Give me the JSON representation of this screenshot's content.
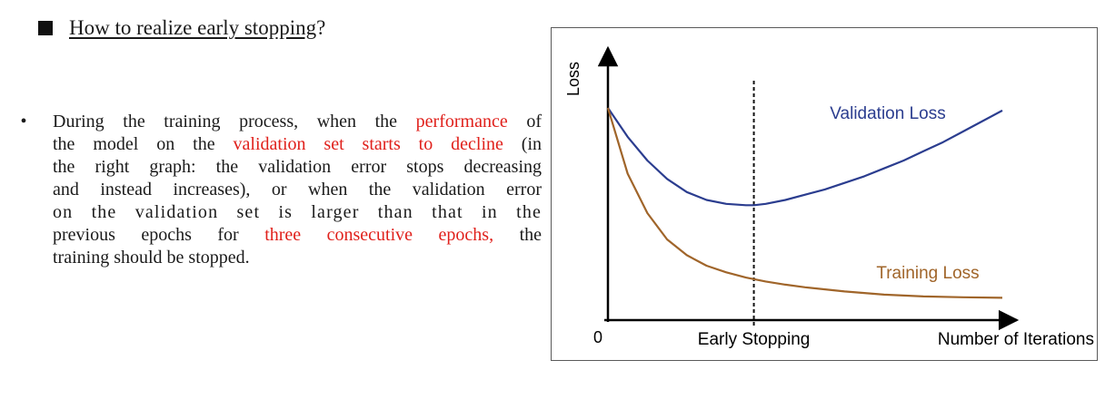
{
  "heading": {
    "link_text": "How to realize early stopping",
    "suffix": "?"
  },
  "bullet": {
    "symbol": "•",
    "lines": [
      [
        {
          "t": "During the training process, when the ",
          "red": false
        },
        {
          "t": "performance",
          "red": true
        },
        {
          "t": " of",
          "red": false
        }
      ],
      [
        {
          "t": "the model on the ",
          "red": false
        },
        {
          "t": "validation set starts to decline",
          "red": true
        },
        {
          "t": " (in",
          "red": false
        }
      ],
      [
        {
          "t": "the right graph: the validation error stops decreasing",
          "red": false
        }
      ],
      [
        {
          "t": "and instead increases), or when the validation error",
          "red": false
        }
      ],
      [
        {
          "t": "on the validation set is larger than that in the",
          "red": false
        }
      ],
      [
        {
          "t": "previous epochs for ",
          "red": false
        },
        {
          "t": "three consecutive epochs,",
          "red": true
        },
        {
          "t": " the",
          "red": false
        }
      ],
      [
        {
          "t": "training should be stopped.",
          "red": false
        }
      ]
    ]
  },
  "figure": {
    "colors": {
      "validation": "#2b3d8f",
      "training": "#a0652a",
      "axis": "#000000",
      "highlight": "#e0201b"
    },
    "ylabel": "Loss",
    "origin_label": "0",
    "xlabel": "Number of Iterations",
    "marker_label": "Early Stopping"
  },
  "chart_data": {
    "type": "line",
    "xlabel": "Number of Iterations",
    "ylabel": "Loss",
    "xlim": [
      0,
      1
    ],
    "ylim": [
      0,
      1
    ],
    "grid": false,
    "annotations": [
      {
        "text": "Early Stopping",
        "x": 0.37
      }
    ],
    "series": [
      {
        "name": "Validation Loss",
        "x": [
          0,
          0.05,
          0.1,
          0.15,
          0.2,
          0.25,
          0.3,
          0.35,
          0.37,
          0.4,
          0.45,
          0.5,
          0.55,
          0.6,
          0.65,
          0.7,
          0.75,
          0.8,
          0.85,
          0.9,
          0.95,
          1.0
        ],
        "y": [
          0.8,
          0.69,
          0.6,
          0.53,
          0.48,
          0.45,
          0.435,
          0.43,
          0.43,
          0.435,
          0.45,
          0.47,
          0.49,
          0.515,
          0.54,
          0.57,
          0.6,
          0.635,
          0.67,
          0.71,
          0.75,
          0.79
        ]
      },
      {
        "name": "Training Loss",
        "x": [
          0,
          0.05,
          0.1,
          0.15,
          0.2,
          0.25,
          0.3,
          0.35,
          0.4,
          0.45,
          0.5,
          0.6,
          0.7,
          0.8,
          0.9,
          1.0
        ],
        "y": [
          0.8,
          0.55,
          0.4,
          0.3,
          0.24,
          0.2,
          0.175,
          0.155,
          0.14,
          0.128,
          0.118,
          0.102,
          0.09,
          0.083,
          0.08,
          0.078
        ]
      }
    ]
  }
}
